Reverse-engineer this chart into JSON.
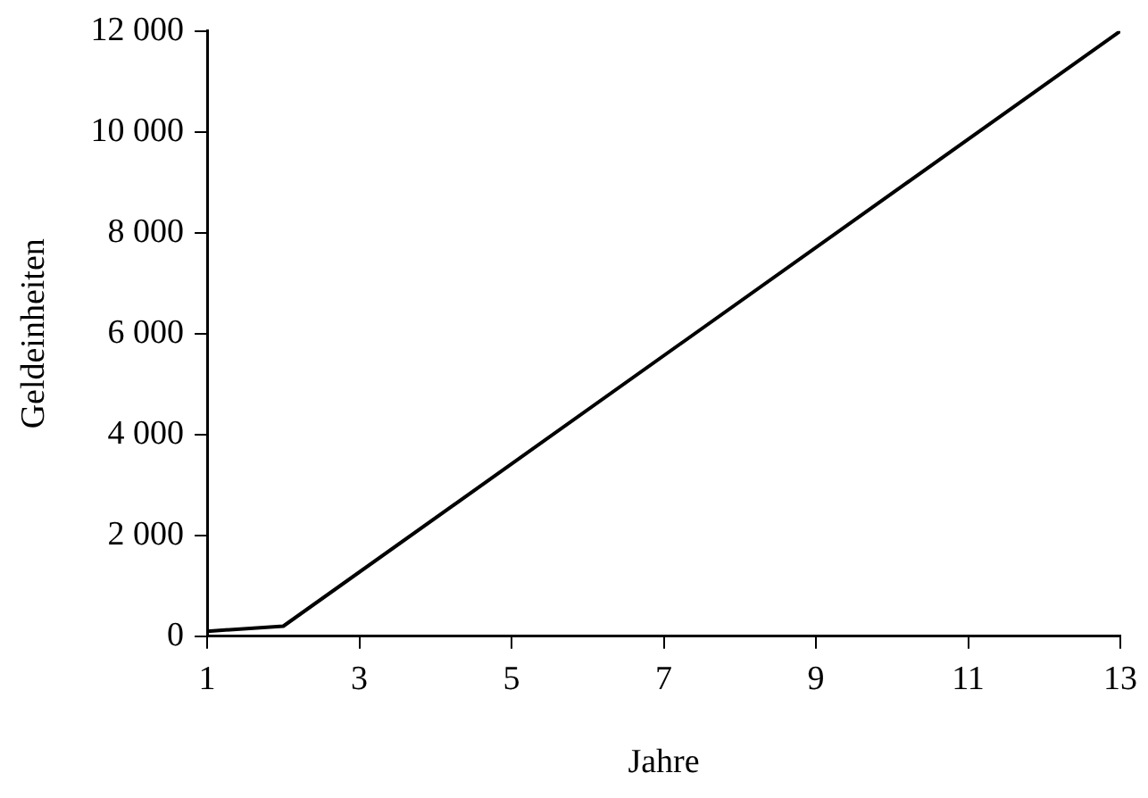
{
  "chart_data": {
    "type": "line",
    "xlabel": "Jahre",
    "ylabel": "Geldeinheiten",
    "x": [
      1,
      2,
      13
    ],
    "series": [
      {
        "color": "#000000",
        "values": [
          100,
          200,
          12000
        ]
      }
    ],
    "xlim": [
      1,
      13
    ],
    "xticks": [
      1,
      3,
      5,
      7,
      9,
      11,
      13
    ],
    "ylim": [
      0,
      12000
    ],
    "yticks": [
      {
        "value": 0,
        "label": "0"
      },
      {
        "value": 2000,
        "label": "2 000"
      },
      {
        "value": 4000,
        "label": "4 000"
      },
      {
        "value": 6000,
        "label": "6 000"
      },
      {
        "value": 8000,
        "label": "8 000"
      },
      {
        "value": 10000,
        "label": "10 000"
      },
      {
        "value": 12000,
        "label": "12 000"
      }
    ],
    "grid": false,
    "legend": false,
    "marker": "none",
    "line_style": "solid"
  }
}
